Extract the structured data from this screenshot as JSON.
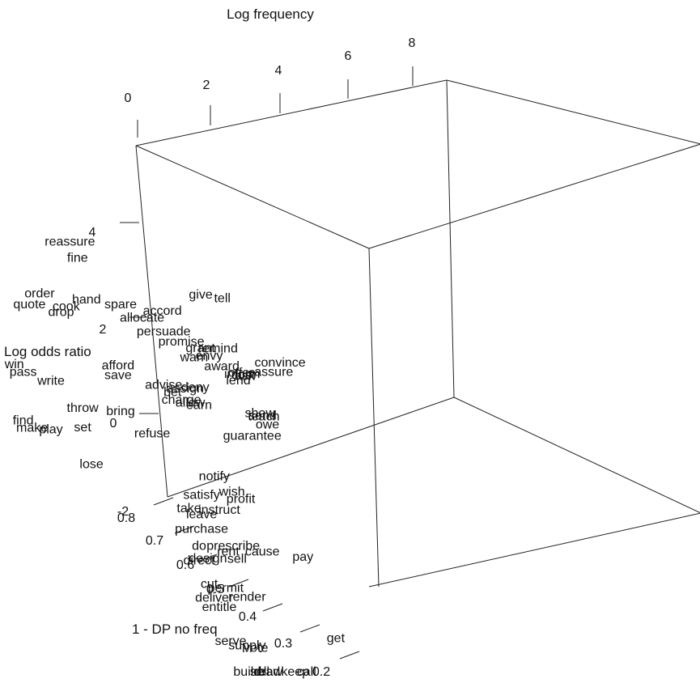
{
  "chart_data": {
    "type": "scatter",
    "title": "",
    "xlabel": "Log frequency",
    "ylabel": "Log odds ratio",
    "zlabel": "1 - DP no freq",
    "xticks": [
      "0",
      "2",
      "4",
      "6",
      "8"
    ],
    "yticks": [
      "-2",
      "0",
      "2",
      "4"
    ],
    "zticks": [
      "0.2",
      "0.3",
      "0.4",
      "0.5",
      "0.6",
      "0.7",
      "0.8"
    ],
    "grid": false,
    "points": [
      {
        "label": "tell",
        "log_frequency": 7.6,
        "log_odds_ratio": 5.6,
        "dp": 0.78
      },
      {
        "label": "give",
        "log_frequency": 7.3,
        "log_odds_ratio": 5.3,
        "dp": 0.8
      },
      {
        "label": "convince",
        "log_frequency": 3.4,
        "log_odds_ratio": 5.3,
        "dp": 0.35
      },
      {
        "label": "assure",
        "log_frequency": 3.5,
        "log_odds_ratio": 5.0,
        "dp": 0.37
      },
      {
        "label": "remind",
        "log_frequency": 2.7,
        "log_odds_ratio": 4.5,
        "dp": 0.42
      },
      {
        "label": "cost",
        "log_frequency": 3.1,
        "log_odds_ratio": 4.4,
        "dp": 0.4
      },
      {
        "label": "accord",
        "log_frequency": 2.3,
        "log_odds_ratio": 4.3,
        "dp": 0.5
      },
      {
        "label": "inform",
        "log_frequency": 3.6,
        "log_odds_ratio": 4.4,
        "dp": 0.44
      },
      {
        "label": "ask",
        "log_frequency": 3.8,
        "log_odds_ratio": 4.4,
        "dp": 0.45
      },
      {
        "label": "offer",
        "log_frequency": 4.1,
        "log_odds_ratio": 4.4,
        "dp": 0.48
      },
      {
        "label": "grant",
        "log_frequency": 2.9,
        "log_odds_ratio": 4.2,
        "dp": 0.47
      },
      {
        "label": "envy",
        "log_frequency": 3.0,
        "log_odds_ratio": 4.2,
        "dp": 0.46
      },
      {
        "label": "award",
        "log_frequency": 3.2,
        "log_odds_ratio": 4.2,
        "dp": 0.45
      },
      {
        "label": "lend",
        "log_frequency": 3.5,
        "log_odds_ratio": 4.2,
        "dp": 0.44
      },
      {
        "label": "reassure",
        "log_frequency": 1.2,
        "log_odds_ratio": 4.1,
        "dp": 0.6
      },
      {
        "label": "promise",
        "log_frequency": 2.8,
        "log_odds_ratio": 4.0,
        "dp": 0.5
      },
      {
        "label": "persuade",
        "log_frequency": 2.6,
        "log_odds_ratio": 3.9,
        "dp": 0.52
      },
      {
        "label": "warn",
        "log_frequency": 3.0,
        "log_odds_ratio": 3.9,
        "dp": 0.49
      },
      {
        "label": "fine",
        "log_frequency": 1.4,
        "log_odds_ratio": 3.9,
        "dp": 0.6
      },
      {
        "label": "allocate",
        "log_frequency": 2.3,
        "log_odds_ratio": 3.8,
        "dp": 0.54
      },
      {
        "label": "spare",
        "log_frequency": 2.0,
        "log_odds_ratio": 3.7,
        "dp": 0.56
      },
      {
        "label": "teach",
        "log_frequency": 4.3,
        "log_odds_ratio": 3.9,
        "dp": 0.45
      },
      {
        "label": "show",
        "log_frequency": 4.6,
        "log_odds_ratio": 3.9,
        "dp": 0.48
      },
      {
        "label": "owe",
        "log_frequency": 4.0,
        "log_odds_ratio": 3.8,
        "dp": 0.42
      },
      {
        "label": "send",
        "log_frequency": 5.6,
        "log_odds_ratio": 3.9,
        "dp": 0.55
      },
      {
        "label": "hand",
        "log_frequency": 1.9,
        "log_odds_ratio": 3.2,
        "dp": 0.62
      },
      {
        "label": "deny",
        "log_frequency": 2.9,
        "log_odds_ratio": 3.3,
        "dp": 0.48
      },
      {
        "label": "guarantee",
        "log_frequency": 3.6,
        "log_odds_ratio": 3.3,
        "dp": 0.42
      },
      {
        "label": "assign",
        "log_frequency": 2.9,
        "log_odds_ratio": 3.1,
        "dp": 0.5
      },
      {
        "label": "earn",
        "log_frequency": 3.0,
        "log_odds_ratio": 3.0,
        "dp": 0.48
      },
      {
        "label": "allow",
        "log_frequency": 2.9,
        "log_odds_ratio": 2.9,
        "dp": 0.49
      },
      {
        "label": "advise",
        "log_frequency": 2.6,
        "log_odds_ratio": 2.8,
        "dp": 0.52
      },
      {
        "label": "bet",
        "log_frequency": 2.7,
        "log_odds_ratio": 2.8,
        "dp": 0.51
      },
      {
        "label": "charge",
        "log_frequency": 2.8,
        "log_odds_ratio": 2.8,
        "dp": 0.5
      },
      {
        "label": "cook",
        "log_frequency": 1.5,
        "log_odds_ratio": 2.7,
        "dp": 0.63
      },
      {
        "label": "order",
        "log_frequency": 1.2,
        "log_odds_ratio": 2.5,
        "dp": 0.66
      },
      {
        "label": "drop",
        "log_frequency": 1.5,
        "log_odds_ratio": 2.5,
        "dp": 0.64
      },
      {
        "label": "afford",
        "log_frequency": 2.2,
        "log_odds_ratio": 2.4,
        "dp": 0.58
      },
      {
        "label": "save",
        "log_frequency": 2.2,
        "log_odds_ratio": 2.2,
        "dp": 0.58
      },
      {
        "label": "quote",
        "log_frequency": 1.2,
        "log_odds_ratio": 2.1,
        "dp": 0.68
      },
      {
        "label": "notify",
        "log_frequency": 3.0,
        "log_odds_ratio": 1.8,
        "dp": 0.45
      },
      {
        "label": "wish",
        "log_frequency": 3.2,
        "log_odds_ratio": 1.8,
        "dp": 0.43
      },
      {
        "label": "profit",
        "log_frequency": 3.3,
        "log_odds_ratio": 1.8,
        "dp": 0.42
      },
      {
        "label": "pay",
        "log_frequency": 4.4,
        "log_odds_ratio": 1.7,
        "dp": 0.38
      },
      {
        "label": "refuse",
        "log_frequency": 2.3,
        "log_odds_ratio": 1.6,
        "dp": 0.52
      },
      {
        "label": "bring",
        "log_frequency": 2.0,
        "log_odds_ratio": 1.5,
        "dp": 0.56
      },
      {
        "label": "satisfy",
        "log_frequency": 2.8,
        "log_odds_ratio": 1.2,
        "dp": 0.46
      },
      {
        "label": "instruct",
        "log_frequency": 3.0,
        "log_odds_ratio": 1.2,
        "dp": 0.44
      },
      {
        "label": "cause",
        "log_frequency": 3.6,
        "log_odds_ratio": 1.1,
        "dp": 0.4
      },
      {
        "label": "write",
        "log_frequency": 1.5,
        "log_odds_ratio": 0.9,
        "dp": 0.66
      },
      {
        "label": "throw",
        "log_frequency": 1.8,
        "log_odds_ratio": 0.9,
        "dp": 0.62
      },
      {
        "label": "leave",
        "log_frequency": 2.8,
        "log_odds_ratio": 0.8,
        "dp": 0.46
      },
      {
        "label": "take",
        "log_frequency": 2.6,
        "log_odds_ratio": 0.7,
        "dp": 0.47
      },
      {
        "label": "prescribe",
        "log_frequency": 3.1,
        "log_odds_ratio": 0.7,
        "dp": 0.42
      },
      {
        "label": "get",
        "log_frequency": 4.6,
        "log_odds_ratio": 0.6,
        "dp": 0.33
      },
      {
        "label": "pass",
        "log_frequency": 1.3,
        "log_odds_ratio": 0.6,
        "dp": 0.7
      },
      {
        "label": "win",
        "log_frequency": 1.2,
        "log_odds_ratio": 0.6,
        "dp": 0.71
      },
      {
        "label": "set",
        "log_frequency": 1.8,
        "log_odds_ratio": 0.5,
        "dp": 0.62
      },
      {
        "label": "purchase",
        "log_frequency": 2.8,
        "log_odds_ratio": 0.5,
        "dp": 0.46
      },
      {
        "label": "rent",
        "log_frequency": 3.1,
        "log_odds_ratio": 0.5,
        "dp": 0.43
      },
      {
        "label": "sell_",
        "log_frequency": 3.2,
        "log_odds_ratio": 0.5,
        "dp": 0.42
      },
      {
        "label": "do",
        "log_frequency": 2.6,
        "log_odds_ratio": 0.1,
        "dp": 0.45
      },
      {
        "label": "design",
        "log_frequency": 2.7,
        "log_odds_ratio": 0.0,
        "dp": 0.44
      },
      {
        "label": "render",
        "log_frequency": 3.2,
        "log_odds_ratio": -0.1,
        "dp": 0.4
      },
      {
        "label": "play",
        "log_frequency": 1.5,
        "log_odds_ratio": -0.1,
        "dp": 0.66
      },
      {
        "label": "lose",
        "log_frequency": 1.9,
        "log_odds_ratio": -0.1,
        "dp": 0.61
      },
      {
        "label": "direct",
        "log_frequency": 2.6,
        "log_odds_ratio": -0.2,
        "dp": 0.45
      },
      {
        "label": "permit",
        "log_frequency": 2.9,
        "log_odds_ratio": -0.3,
        "dp": 0.42
      },
      {
        "label": "find",
        "log_frequency": 1.3,
        "log_odds_ratio": -0.4,
        "dp": 0.7
      },
      {
        "label": "make",
        "log_frequency": 1.4,
        "log_odds_ratio": -0.4,
        "dp": 0.69
      },
      {
        "label": "cut",
        "log_frequency": 2.6,
        "log_odds_ratio": -0.5,
        "dp": 0.43
      },
      {
        "label": "deliver",
        "log_frequency": 2.6,
        "log_odds_ratio": -0.7,
        "dp": 0.42
      },
      {
        "label": "entitle",
        "log_frequency": 2.6,
        "log_odds_ratio": -0.8,
        "dp": 0.41
      },
      {
        "label": "vote",
        "log_frequency": 2.9,
        "log_odds_ratio": -1.0,
        "dp": 0.36
      },
      {
        "label": "supply",
        "log_frequency": 2.8,
        "log_odds_ratio": -1.1,
        "dp": 0.37
      },
      {
        "label": "serve",
        "log_frequency": 2.5,
        "log_odds_ratio": -1.3,
        "dp": 0.38
      },
      {
        "label": "sell",
        "log_frequency": 2.6,
        "log_odds_ratio": -1.6,
        "dp": 0.33
      },
      {
        "label": "build",
        "log_frequency": 2.4,
        "log_odds_ratio": -1.8,
        "dp": 0.34
      },
      {
        "label": "draw",
        "log_frequency": 2.7,
        "log_odds_ratio": -1.8,
        "dp": 0.32
      },
      {
        "label": "read",
        "log_frequency": 2.4,
        "log_odds_ratio": -2.2,
        "dp": 0.3
      },
      {
        "label": "keep",
        "log_frequency": 2.6,
        "log_odds_ratio": -2.5,
        "dp": 0.26
      },
      {
        "label": "call",
        "log_frequency": 2.5,
        "log_odds_ratio": -2.8,
        "dp": 0.23
      }
    ]
  }
}
